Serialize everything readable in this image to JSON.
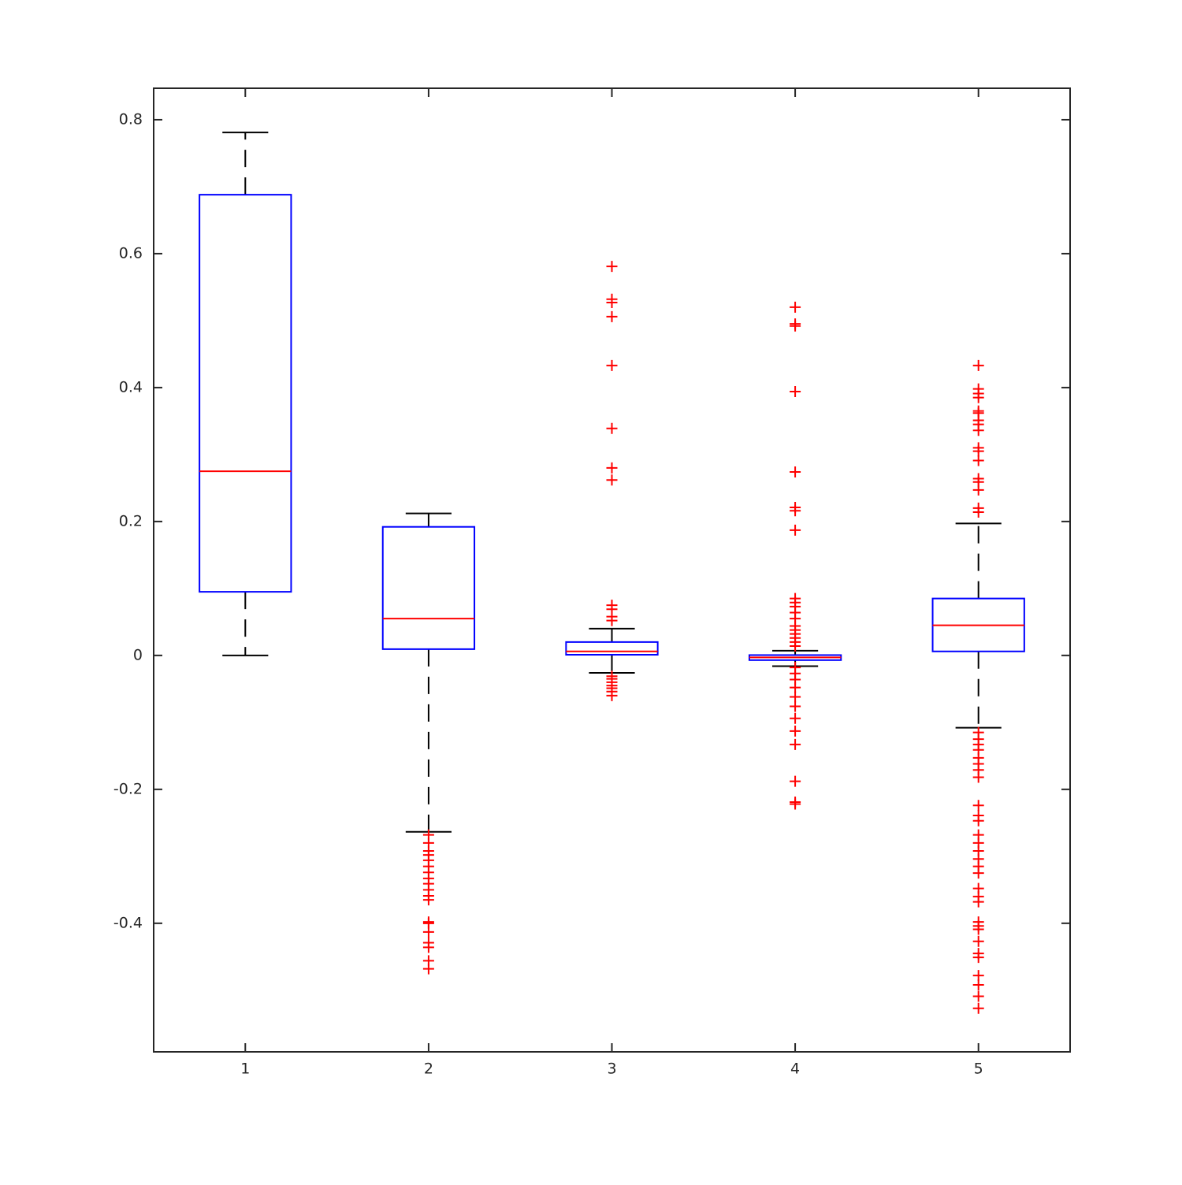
{
  "chart_data": {
    "type": "box",
    "x": [
      1,
      2,
      3,
      4,
      5
    ],
    "xlim": [
      0.5,
      5.5
    ],
    "xticks": [
      1,
      2,
      3,
      4,
      5
    ],
    "ylim": [
      -0.592,
      0.847
    ],
    "yticks": [
      -0.4,
      -0.2,
      0,
      0.2,
      0.4,
      0.6,
      0.8
    ],
    "grid": false,
    "box_color": "#0000ff",
    "median_color": "#ff0000",
    "whisker_color": "#000000",
    "flier_color": "#ff0000",
    "boxes": [
      {
        "whislo": 0,
        "q1": 0.095,
        "med": 0.275,
        "q3": 0.688,
        "whishi": 0.781,
        "fliers": []
      },
      {
        "whislo": -0.2635,
        "q1": 0.0094,
        "med": 0.055,
        "q3": 0.192,
        "whishi": 0.212,
        "fliers": [
          -0.268,
          -0.28,
          -0.292,
          -0.298,
          -0.306,
          -0.315,
          -0.324,
          -0.333,
          -0.341,
          -0.35,
          -0.359,
          -0.365,
          -0.398,
          -0.4,
          -0.413,
          -0.429,
          -0.436,
          -0.456,
          -0.468
        ]
      },
      {
        "whislo": -0.026,
        "q1": 0.001,
        "med": 0.006,
        "q3": 0.02,
        "whishi": 0.04,
        "fliers": [
          0.581,
          0.532,
          0.527,
          0.506,
          0.433,
          0.339,
          0.28,
          0.262,
          0.075,
          0.069,
          0.058,
          0.052,
          -0.031,
          -0.035,
          -0.04,
          -0.045,
          -0.049,
          -0.054,
          -0.06
        ]
      },
      {
        "whislo": -0.016,
        "q1": -0.007,
        "med": -0.003,
        "q3": 0.0005,
        "whishi": 0.007,
        "fliers": [
          0.52,
          0.495,
          0.492,
          0.394,
          0.274,
          0.221,
          0.216,
          0.187,
          0.085,
          0.079,
          0.073,
          0.064,
          0.055,
          0.044,
          0.038,
          0.032,
          0.026,
          0.02,
          0.014,
          -0.018,
          -0.027,
          -0.036,
          -0.048,
          -0.062,
          -0.076,
          -0.094,
          -0.113,
          -0.133,
          -0.188,
          -0.219,
          -0.222
        ]
      },
      {
        "whislo": -0.108,
        "q1": 0.006,
        "med": 0.045,
        "q3": 0.085,
        "whishi": 0.197,
        "fliers": [
          0.433,
          0.398,
          0.391,
          0.385,
          0.365,
          0.362,
          0.351,
          0.345,
          0.336,
          0.31,
          0.305,
          0.291,
          0.264,
          0.259,
          0.247,
          0.22,
          0.214,
          -0.115,
          -0.125,
          -0.133,
          -0.141,
          -0.153,
          -0.162,
          -0.171,
          -0.182,
          -0.224,
          -0.239,
          -0.247,
          -0.268,
          -0.28,
          -0.292,
          -0.304,
          -0.315,
          -0.325,
          -0.348,
          -0.36,
          -0.368,
          -0.398,
          -0.404,
          -0.409,
          -0.427,
          -0.445,
          -0.451,
          -0.478,
          -0.492,
          -0.509,
          -0.527
        ]
      }
    ]
  }
}
